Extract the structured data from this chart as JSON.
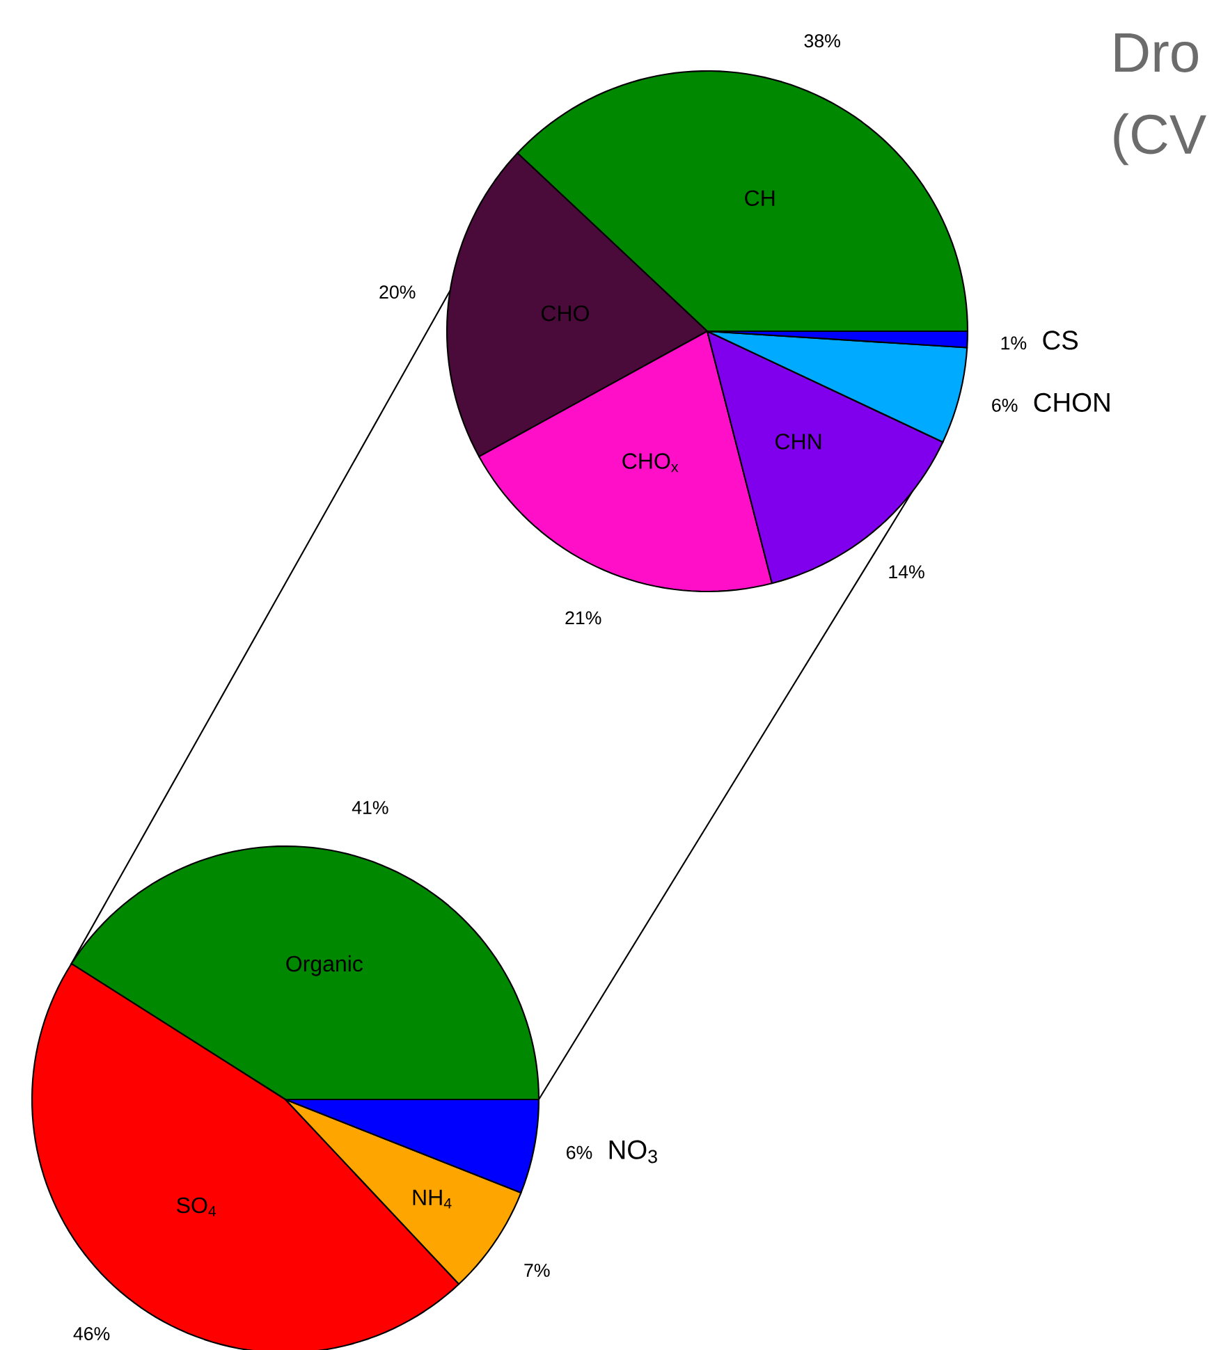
{
  "chart_data": [
    {
      "type": "pie",
      "annotations": [
        "Dro",
        "(CV"
      ],
      "categories": [
        "CH",
        "CHO",
        "CHO$_{x}$",
        "CHN",
        "CHON",
        "CS"
      ],
      "values": [
        38,
        20,
        21,
        14,
        6,
        1
      ],
      "value_labels": [
        "38%",
        "20%",
        "21%",
        "14%",
        "6%",
        "1%"
      ],
      "colors": [
        "#008800",
        "#4a0a3a",
        "#ff10c8",
        "#8000ee",
        "#00aaff",
        "#0000ff"
      ]
    },
    {
      "type": "pie",
      "categories": [
        "Organic",
        "SO$_{4}$",
        "NH$_{4}$",
        "NO$_{3}$"
      ],
      "values": [
        41,
        46,
        7,
        6
      ],
      "value_labels": [
        "41%",
        "46%",
        "7%",
        "6%"
      ],
      "colors": [
        "#008800",
        "#ff0000",
        "#ffa500",
        "#0000ff"
      ]
    }
  ]
}
